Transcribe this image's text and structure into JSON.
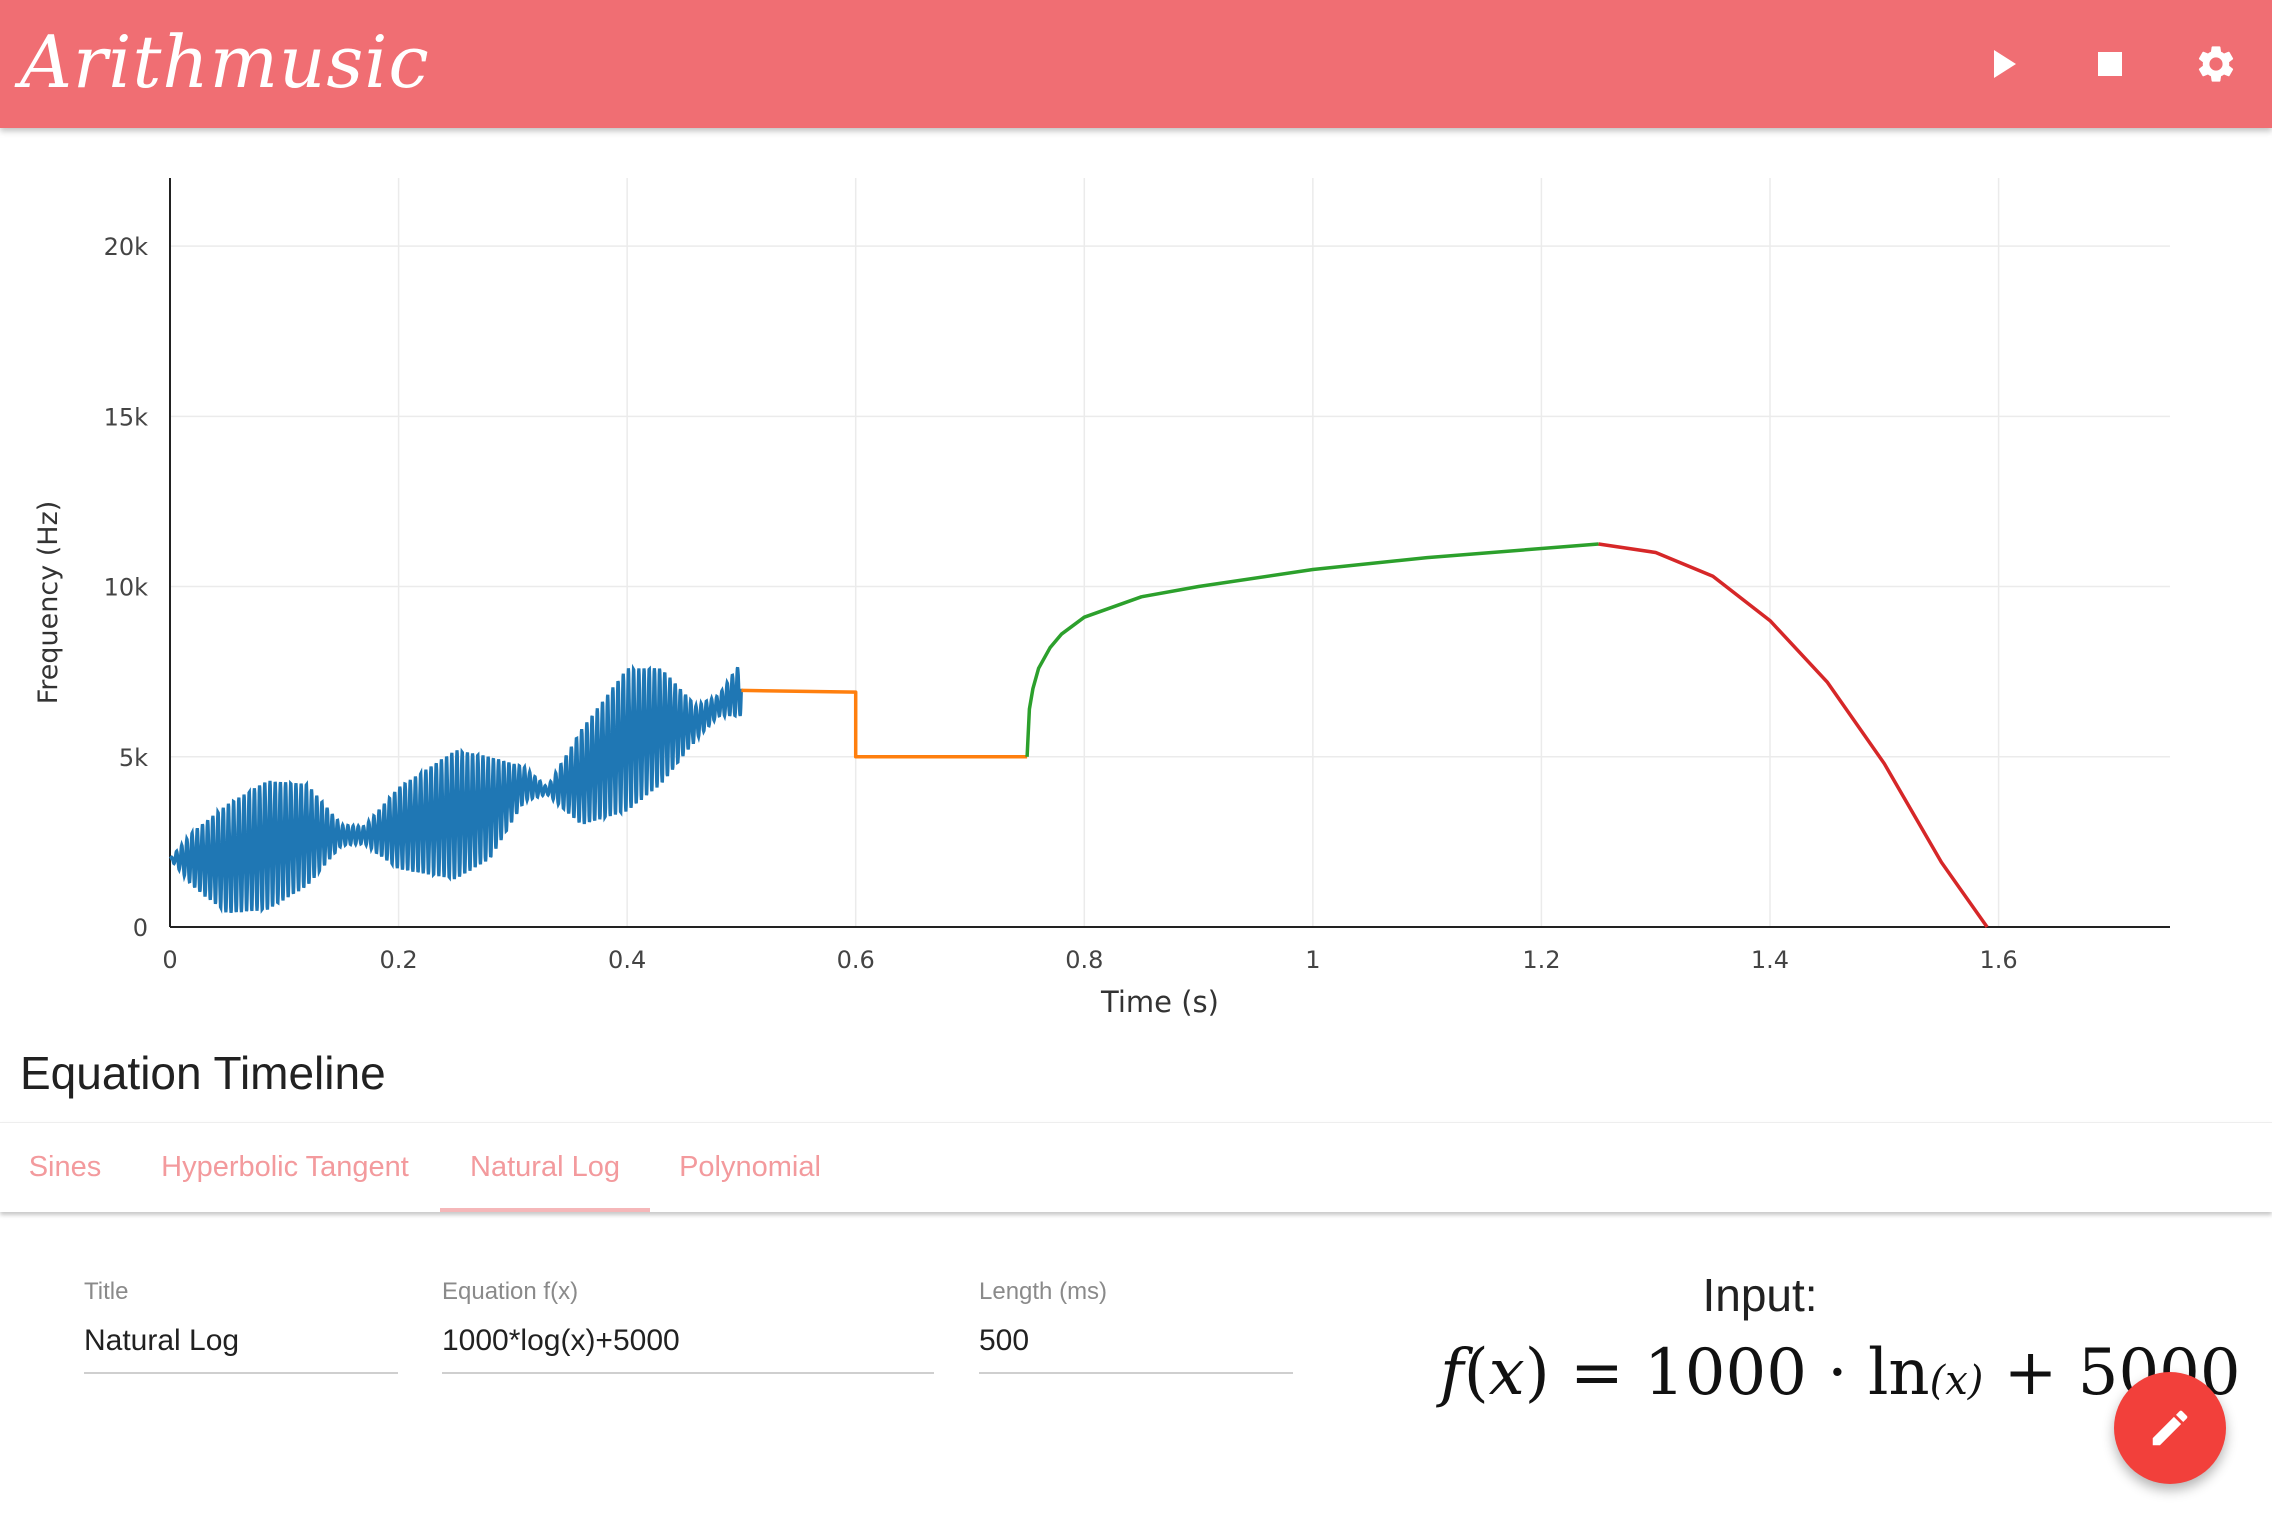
{
  "app": {
    "title": "Arithmusic",
    "accent_color": "#f06e73"
  },
  "toolbar": {
    "play_icon": "play-icon",
    "stop_icon": "stop-icon",
    "settings_icon": "gear-icon"
  },
  "chart_data": {
    "type": "line",
    "xlabel": "Time (s)",
    "ylabel": "Frequency (Hz)",
    "xlim": [
      0,
      1.75
    ],
    "ylim": [
      0,
      22000
    ],
    "xticks": [
      0,
      0.2,
      0.4,
      0.6,
      0.8,
      1,
      1.2,
      1.4,
      1.6
    ],
    "xtick_labels": [
      "0",
      "0.2",
      "0.4",
      "0.6",
      "0.8",
      "1",
      "1.2",
      "1.4",
      "1.6"
    ],
    "yticks": [
      0,
      5000,
      10000,
      15000,
      20000
    ],
    "ytick_labels": [
      "0",
      "5k",
      "10k",
      "15k",
      "20k"
    ],
    "grid": true,
    "series": [
      {
        "color": "#1f77b4",
        "style": "oscillating",
        "x": [
          0,
          0.02,
          0.05,
          0.085,
          0.12,
          0.15,
          0.17,
          0.2,
          0.25,
          0.28,
          0.31,
          0.33,
          0.36,
          0.4,
          0.43,
          0.46,
          0.48,
          0.5
        ],
        "center": [
          2000,
          2000,
          2000,
          2400,
          2700,
          2700,
          2700,
          2900,
          3300,
          3500,
          4200,
          4000,
          4400,
          5500,
          5900,
          6000,
          6500,
          7000
        ],
        "amplitude": [
          0,
          800,
          1600,
          1900,
          1500,
          300,
          250,
          1200,
          1900,
          1500,
          500,
          100,
          1400,
          2100,
          1700,
          500,
          300,
          800
        ]
      },
      {
        "color": "#ff7f0e",
        "x": [
          0.5,
          0.6,
          0.6,
          0.75
        ],
        "y": [
          6950,
          6900,
          5000,
          5000
        ]
      },
      {
        "color": "#2ca02c",
        "x": [
          0.75,
          0.752,
          0.755,
          0.76,
          0.77,
          0.78,
          0.8,
          0.85,
          0.9,
          1.0,
          1.1,
          1.25
        ],
        "y": [
          5000,
          6400,
          7000,
          7600,
          8200,
          8600,
          9100,
          9700,
          10000,
          10500,
          10850,
          11250
        ]
      },
      {
        "color": "#d62728",
        "x": [
          1.25,
          1.3,
          1.35,
          1.4,
          1.45,
          1.5,
          1.55,
          1.59
        ],
        "y": [
          11250,
          11000,
          10300,
          9000,
          7200,
          4800,
          1900,
          0
        ]
      }
    ]
  },
  "timeline": {
    "heading": "Equation Timeline",
    "tabs": [
      "Sines",
      "Hyperbolic Tangent",
      "Natural Log",
      "Polynomial"
    ],
    "active_tab": "Natural Log",
    "active_tab_index": 2
  },
  "editor": {
    "title_label": "Title",
    "title_value": "Natural Log",
    "equation_label": "Equation f(x)",
    "equation_value": "1000*log(x)+5000",
    "length_label": "Length (ms)",
    "length_value": "500",
    "input_heading": "Input:",
    "formula_parts": {
      "lhs": "f",
      "open": "(",
      "var": "x",
      "close": ")",
      "eq": " = 1000 · ",
      "fn": "ln",
      "arg": "(x)",
      "tail": " + 5000"
    },
    "fab_icon": "pencil-icon",
    "fab_color": "#f2403b"
  }
}
